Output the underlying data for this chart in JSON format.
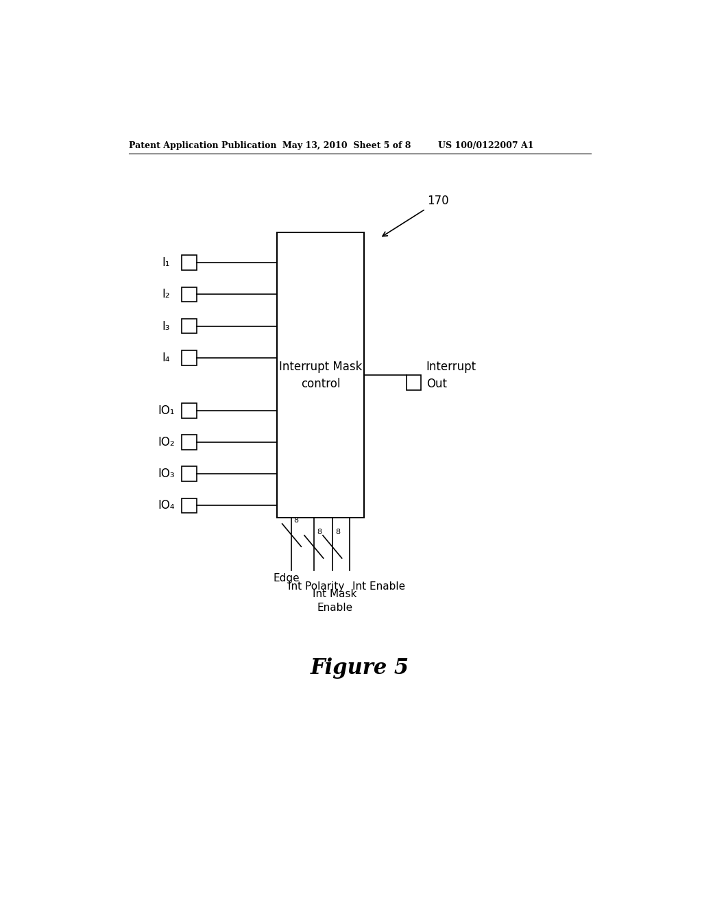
{
  "title_left": "Patent Application Publication",
  "title_mid": "May 13, 2010  Sheet 5 of 8",
  "title_right": "US 100/0122007 A1",
  "figure_label": "Figure 5",
  "ref_number": "170",
  "block_label": "Interrupt Mask\ncontrol",
  "output_label": "Interrupt\nOut",
  "input_labels_I": [
    "I₁",
    "I₂",
    "I₃",
    "I₄"
  ],
  "input_labels_IO": [
    "IO₁",
    "IO₂",
    "IO₃",
    "IO₄"
  ],
  "bg_color": "#ffffff",
  "line_color": "#000000",
  "text_color": "#000000"
}
